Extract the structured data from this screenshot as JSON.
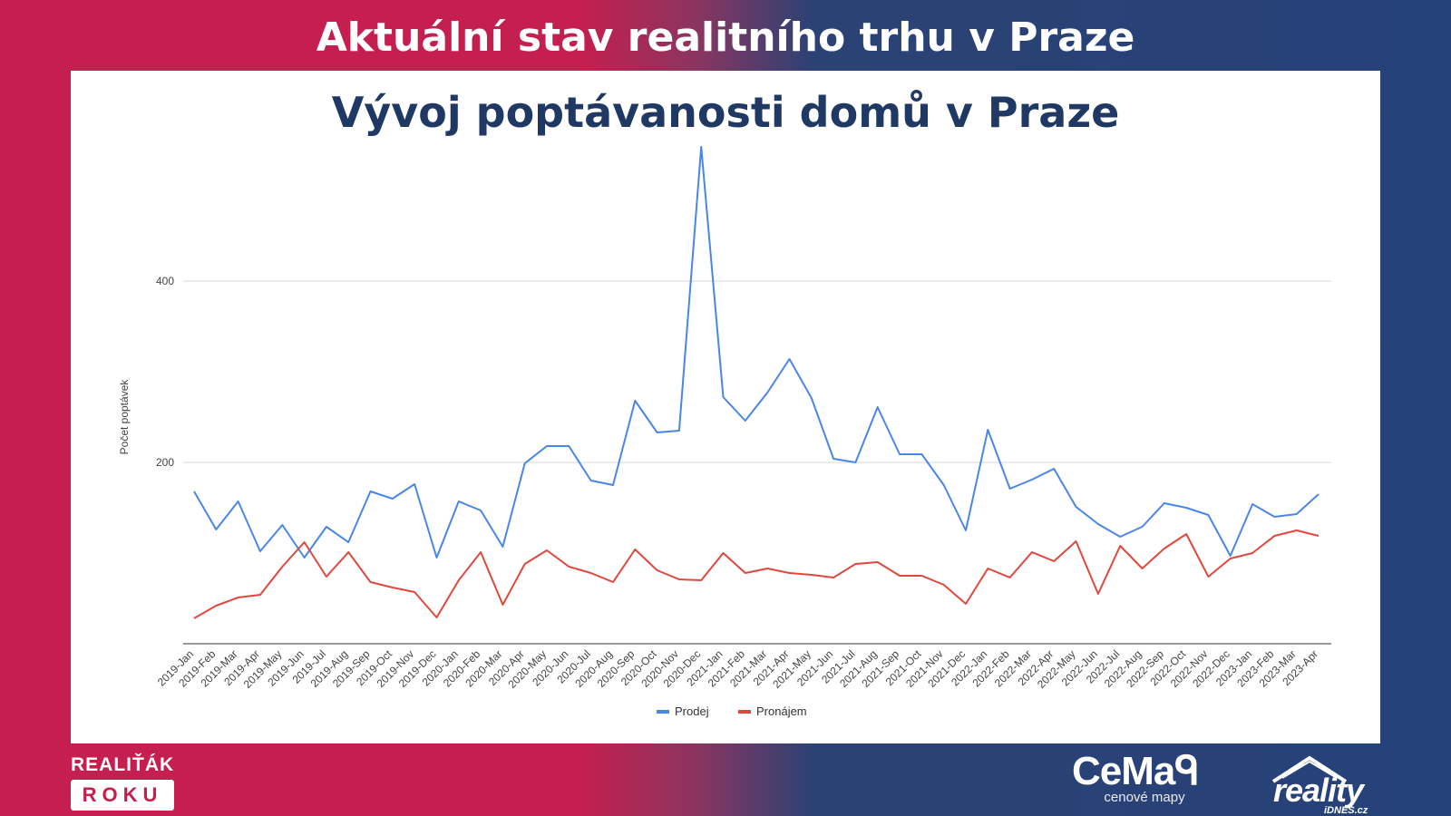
{
  "banner": {
    "title": "Aktuální stav realitního trhu v Praze"
  },
  "chart_data": {
    "type": "line",
    "title": "Vývoj poptávanosti domů v Praze",
    "ylabel": "Počet poptávek",
    "xlabel": "",
    "ylim": [
      0,
      550
    ],
    "yticks": [
      200,
      400
    ],
    "grid": true,
    "legend_position": "bottom-center",
    "categories": [
      "2019-Jan",
      "2019-Feb",
      "2019-Mar",
      "2019-Apr",
      "2019-May",
      "2019-Jun",
      "2019-Jul",
      "2019-Aug",
      "2019-Sep",
      "2019-Oct",
      "2019-Nov",
      "2019-Dec",
      "2020-Jan",
      "2020-Feb",
      "2020-Mar",
      "2020-Apr",
      "2020-May",
      "2020-Jun",
      "2020-Jul",
      "2020-Aug",
      "2020-Sep",
      "2020-Oct",
      "2020-Nov",
      "2020-Dec",
      "2021-Jan",
      "2021-Feb",
      "2021-Mar",
      "2021-Apr",
      "2021-May",
      "2021-Jun",
      "2021-Jul",
      "2021-Aug",
      "2021-Sep",
      "2021-Oct",
      "2021-Nov",
      "2021-Dec",
      "2022-Jan",
      "2022-Feb",
      "2022-Mar",
      "2022-Apr",
      "2022-May",
      "2022-Jun",
      "2022-Jul",
      "2022-Aug",
      "2022-Sep",
      "2022-Oct",
      "2022-Nov",
      "2022-Dec",
      "2023-Jan",
      "2023-Feb",
      "2023-Mar",
      "2023-Apr"
    ],
    "series": [
      {
        "name": "Prodej",
        "color": "#4a86e8",
        "values": [
          168,
          126,
          157,
          102,
          131,
          95,
          129,
          112,
          168,
          160,
          176,
          95,
          157,
          147,
          107,
          199,
          218,
          218,
          180,
          175,
          268,
          233,
          235,
          548,
          272,
          246,
          277,
          314,
          271,
          204,
          200,
          261,
          209,
          209,
          175,
          125,
          236,
          171,
          181,
          193,
          151,
          132,
          118,
          129,
          155,
          150,
          142,
          97,
          154,
          140,
          143,
          165
        ]
      },
      {
        "name": "Pronájem",
        "color": "#e0483e",
        "values": [
          28,
          42,
          51,
          54,
          85,
          112,
          74,
          101,
          68,
          62,
          57,
          29,
          70,
          101,
          43,
          88,
          103,
          85,
          78,
          68,
          104,
          81,
          71,
          70,
          100,
          78,
          83,
          78,
          76,
          73,
          88,
          90,
          75,
          75,
          65,
          44,
          83,
          73,
          101,
          91,
          113,
          55,
          108,
          83,
          105,
          121,
          74,
          94,
          100,
          119,
          125,
          119
        ]
      }
    ]
  },
  "footer": {
    "realitak_top": "REALIŤÁK",
    "realitak_bottom": "ROKU",
    "cemap_name": "CeMaᑫ",
    "cemap_sub": "cenové mapy",
    "reality_name": "reality",
    "reality_sub": "iDNES.cz"
  }
}
